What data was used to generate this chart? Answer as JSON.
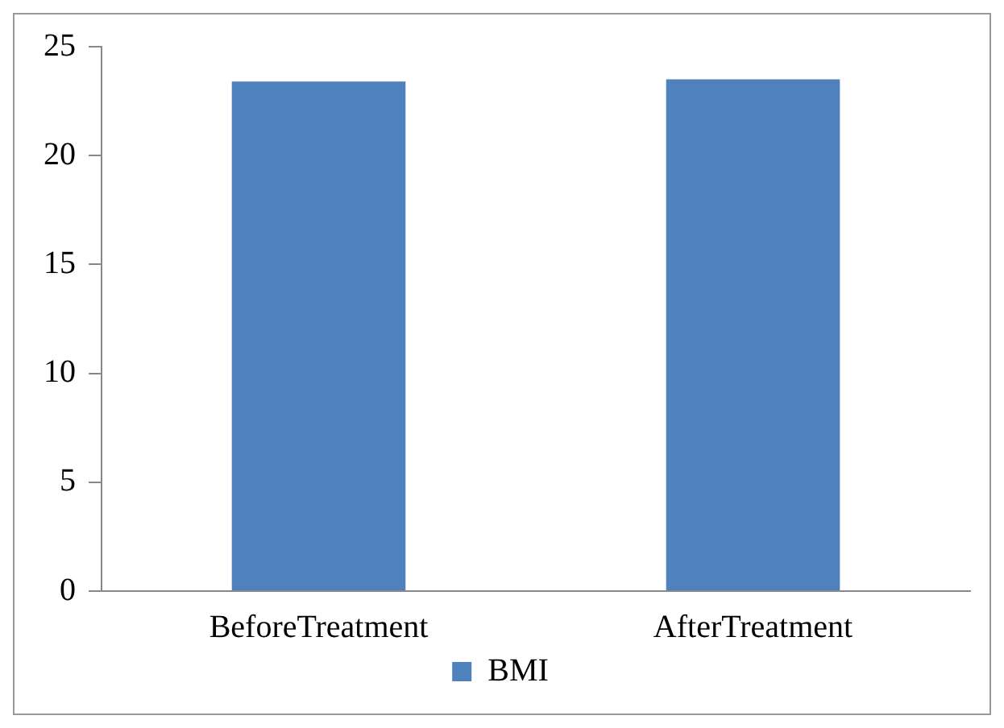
{
  "chart_data": {
    "type": "bar",
    "categories": [
      "BeforeTreatment",
      "AfterTreatment"
    ],
    "series": [
      {
        "name": "BMI",
        "color": "#4f81bd",
        "values": [
          23.4,
          23.5
        ]
      }
    ],
    "ylim": [
      0,
      25
    ],
    "yticks": [
      0,
      5,
      10,
      15,
      20,
      25
    ],
    "grid": false,
    "legend": "bottom"
  }
}
